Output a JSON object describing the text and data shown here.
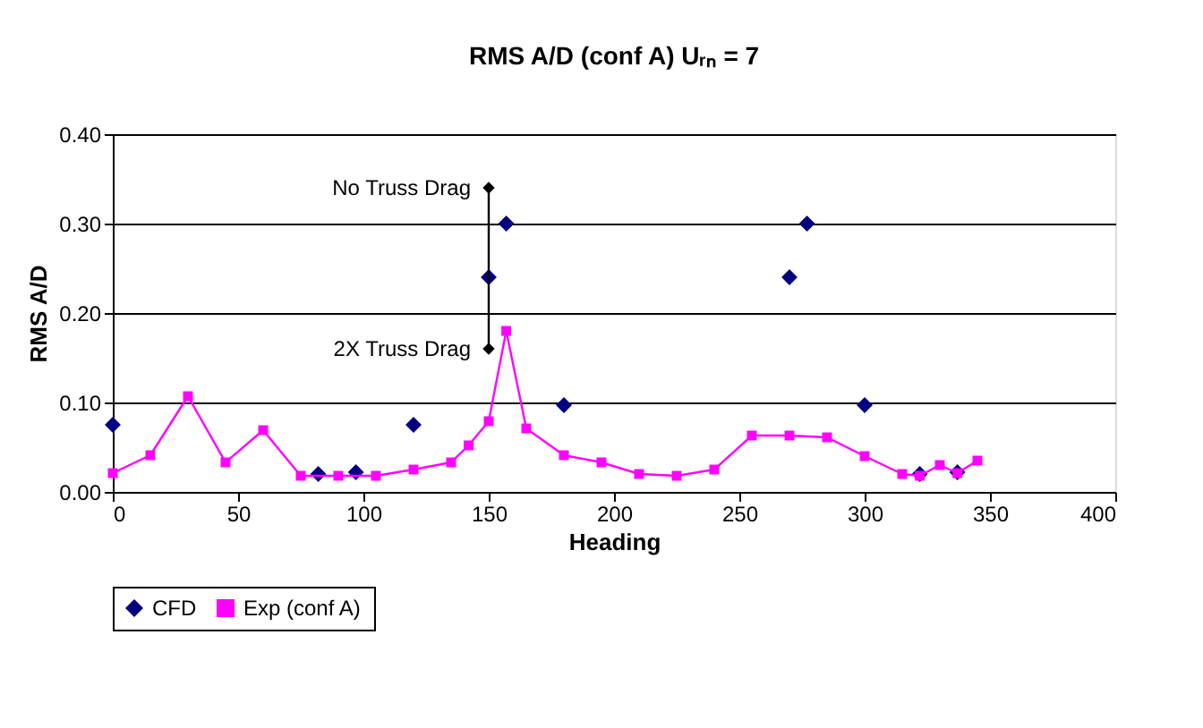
{
  "chart_data": {
    "type": "scatter",
    "title": "RMS A/D (conf A) Uᵣₙ = 7",
    "xlabel": "Heading",
    "ylabel": "RMS A/D",
    "series": [
      {
        "name": "CFD",
        "marker": "diamond",
        "color": "#000080",
        "x": [
          0,
          82,
          97,
          120,
          150,
          157,
          180,
          270,
          277,
          300,
          322,
          337
        ],
        "values": [
          0.075,
          0.02,
          0.022,
          0.075,
          0.24,
          0.3,
          0.097,
          0.24,
          0.3,
          0.097,
          0.02,
          0.022
        ]
      },
      {
        "name": "Exp (conf A)",
        "type": "line",
        "marker": "square",
        "color": "#ff00ff",
        "x": [
          0,
          15,
          30,
          45,
          60,
          75,
          90,
          105,
          120,
          135,
          142,
          150,
          157,
          165,
          180,
          195,
          210,
          225,
          240,
          255,
          270,
          285,
          300,
          315,
          322,
          330,
          337,
          345
        ],
        "values": [
          0.021,
          0.041,
          0.107,
          0.033,
          0.069,
          0.018,
          0.018,
          0.018,
          0.025,
          0.033,
          0.052,
          0.079,
          0.18,
          0.071,
          0.041,
          0.033,
          0.02,
          0.018,
          0.025,
          0.063,
          0.063,
          0.061,
          0.04,
          0.02,
          0.018,
          0.03,
          0.021,
          0.035
        ]
      },
      {
        "type": "line",
        "marker": "diamond",
        "color": "#000000",
        "x": [
          150,
          150
        ],
        "values": [
          0.34,
          0.16
        ]
      }
    ],
    "annotations": [
      {
        "text": "No Truss Drag",
        "x": 150,
        "y": 0.34
      },
      {
        "text": "2X Truss Drag",
        "x": 150,
        "y": 0.16
      }
    ],
    "xlim": [
      0,
      400
    ],
    "xticks": [
      0,
      50,
      100,
      150,
      200,
      250,
      300,
      350,
      400
    ],
    "ylim": [
      0,
      0.4
    ],
    "yticks": [
      {
        "value": 0,
        "label": "0.00"
      },
      {
        "value": 0.1,
        "label": "0.10"
      },
      {
        "value": 0.2,
        "label": "0.20"
      },
      {
        "value": 0.3,
        "label": "0.30"
      },
      {
        "value": 0.4,
        "label": "0.40"
      }
    ],
    "grid": "y",
    "legend": "bottom",
    "line_style": "solid"
  }
}
